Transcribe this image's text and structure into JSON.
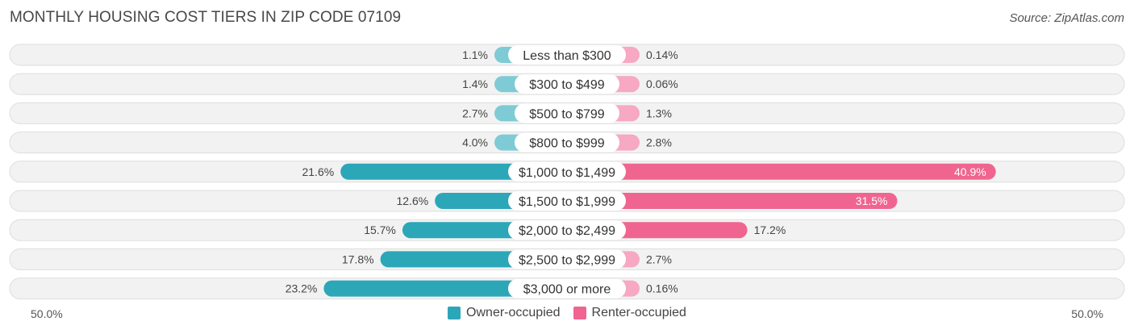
{
  "title": "MONTHLY HOUSING COST TIERS IN ZIP CODE 07109",
  "source": "Source: ZipAtlas.com",
  "colors": {
    "owner": "#4ab1c0",
    "owner_strong": "#2ba7b8",
    "renter": "#f598b6",
    "renter_strong": "#f06590",
    "row_bg": "#f0f0f0"
  },
  "legend": {
    "owner": "Owner-occupied",
    "renter": "Renter-occupied"
  },
  "axis": {
    "left_label": "50.0%",
    "right_label": "50.0%"
  },
  "chart_data": {
    "type": "bar",
    "orientation": "horizontal-diverging",
    "title": "MONTHLY HOUSING COST TIERS IN ZIP CODE 07109",
    "xlim": [
      -50,
      50
    ],
    "categories": [
      "Less than $300",
      "$300 to $499",
      "$500 to $799",
      "$800 to $999",
      "$1,000 to $1,499",
      "$1,500 to $1,999",
      "$2,000 to $2,499",
      "$2,500 to $2,999",
      "$3,000 or more"
    ],
    "series": [
      {
        "name": "Owner-occupied",
        "values": [
          1.1,
          1.4,
          2.7,
          4.0,
          21.6,
          12.6,
          15.7,
          17.8,
          23.2
        ],
        "labels": [
          "1.1%",
          "1.4%",
          "2.7%",
          "4.0%",
          "21.6%",
          "12.6%",
          "15.7%",
          "17.8%",
          "23.2%"
        ]
      },
      {
        "name": "Renter-occupied",
        "values": [
          0.14,
          0.06,
          1.3,
          2.8,
          40.9,
          31.5,
          17.2,
          2.7,
          0.16
        ],
        "labels": [
          "0.14%",
          "0.06%",
          "1.3%",
          "2.8%",
          "40.9%",
          "31.5%",
          "17.2%",
          "2.7%",
          "0.16%"
        ]
      }
    ],
    "legend_position": "bottom-center"
  }
}
